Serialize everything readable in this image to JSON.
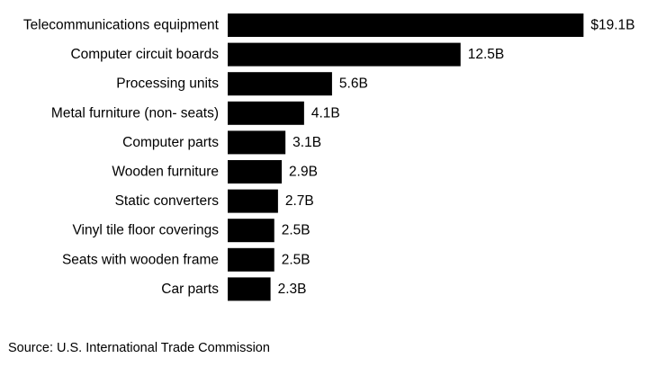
{
  "chart_data": {
    "type": "bar",
    "orientation": "horizontal",
    "categories": [
      "Telecommunications equipment",
      "Computer circuit boards",
      "Processing units",
      "Metal furniture (non- seats)",
      "Computer parts",
      "Wooden furniture",
      "Static converters",
      "Vinyl tile floor coverings",
      "Seats with wooden frame",
      "Car parts"
    ],
    "values": [
      19.1,
      12.5,
      5.6,
      4.1,
      3.1,
      2.9,
      2.7,
      2.5,
      2.5,
      2.3
    ],
    "value_labels": [
      "$19.1B",
      "12.5B",
      "5.6B",
      "4.1B",
      "3.1B",
      "2.9B",
      "2.7B",
      "2.5B",
      "2.5B",
      "2.3B"
    ],
    "bar_color": "#000000",
    "grid": false,
    "legend": "none"
  },
  "source": "Source: U.S. International Trade Commission"
}
